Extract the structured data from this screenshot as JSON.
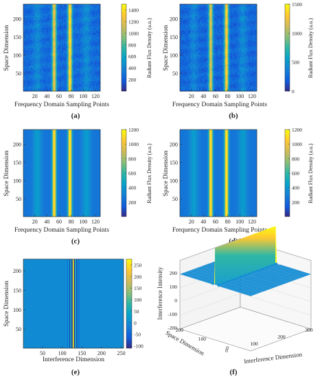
{
  "chart_data": [
    {
      "id": "a",
      "type": "heatmap",
      "caption": "(a)",
      "xlabel": "Frequency Domain Sampling Points",
      "ylabel": "Space Dimension",
      "xlim": [
        1,
        128
      ],
      "ylim": [
        1,
        240
      ],
      "xticks": [
        20,
        40,
        60,
        80,
        100,
        120
      ],
      "yticks": [
        50,
        100,
        150,
        200
      ],
      "colorbar_label": "Radiant Flux Density (a.u.)",
      "clim": [
        0,
        1500
      ],
      "colorbar_ticks": [
        200,
        400,
        600,
        800,
        1000,
        1200,
        1400
      ],
      "peaks": [
        {
          "x": 52,
          "width": 3.5,
          "value": 1250
        },
        {
          "x": 78,
          "width": 3.5,
          "value": 1400
        }
      ],
      "side_bands": [
        {
          "x": 24,
          "value": 420
        },
        {
          "x": 105,
          "value": 430
        }
      ],
      "baseline": 250,
      "noise": "striped"
    },
    {
      "id": "b",
      "type": "heatmap",
      "caption": "(b)",
      "xlabel": "Frequency Domain Sampling Points",
      "ylabel": "Space Dimension",
      "xlim": [
        1,
        128
      ],
      "ylim": [
        1,
        240
      ],
      "xticks": [
        20,
        40,
        60,
        80,
        100,
        120
      ],
      "yticks": [
        50,
        100,
        150,
        200
      ],
      "colorbar_label": "Radiant Flux Density (a.u.)",
      "clim": [
        0,
        1500
      ],
      "colorbar_ticks": [
        0,
        500,
        1000,
        1500
      ],
      "peaks": [
        {
          "x": 52,
          "width": 3.5,
          "value": 1200
        },
        {
          "x": 78,
          "width": 3.5,
          "value": 1350
        }
      ],
      "side_bands": [
        {
          "x": 24,
          "value": 400
        },
        {
          "x": 105,
          "value": 420
        }
      ],
      "baseline": 230,
      "noise": "striped"
    },
    {
      "id": "c",
      "type": "heatmap",
      "caption": "(c)",
      "xlabel": "Frequency Domain Sampling Points",
      "ylabel": "Space Dimension",
      "xlim": [
        1,
        128
      ],
      "ylim": [
        1,
        240
      ],
      "xticks": [
        20,
        40,
        60,
        80,
        100,
        120
      ],
      "yticks": [
        50,
        100,
        150,
        200
      ],
      "colorbar_label": "Radiant Flux Density (a.u.)",
      "clim": [
        0,
        1200
      ],
      "colorbar_ticks": [
        200,
        400,
        600,
        800,
        1000,
        1200
      ],
      "peaks": [
        {
          "x": 52,
          "width": 3.2,
          "value": 1150
        },
        {
          "x": 78,
          "width": 3.2,
          "value": 1180
        }
      ],
      "side_bands": [
        {
          "x": 24,
          "value": 420
        },
        {
          "x": 105,
          "value": 420
        }
      ],
      "baseline": 250,
      "noise": "smooth"
    },
    {
      "id": "d",
      "type": "heatmap",
      "caption": "(d)",
      "xlabel": "Frequency Domain Sampling Points",
      "ylabel": "Space Dimension",
      "xlim": [
        1,
        128
      ],
      "ylim": [
        1,
        240
      ],
      "xticks": [
        20,
        40,
        60,
        80,
        100,
        120
      ],
      "yticks": [
        50,
        100,
        150,
        200
      ],
      "colorbar_label": "Radiant Flux Density (a.u.)",
      "clim": [
        0,
        1200
      ],
      "colorbar_ticks": [
        200,
        400,
        600,
        800,
        1000,
        1200
      ],
      "peaks": [
        {
          "x": 52,
          "width": 3.2,
          "value": 1150
        },
        {
          "x": 78,
          "width": 3.2,
          "value": 1180
        }
      ],
      "side_bands": [
        {
          "x": 24,
          "value": 420
        },
        {
          "x": 105,
          "value": 420
        }
      ],
      "baseline": 250,
      "noise": "smooth"
    },
    {
      "id": "e",
      "type": "heatmap",
      "caption": "(e)",
      "xlabel": "Interference Dimension",
      "ylabel": "Space Dimension",
      "xlim": [
        1,
        256
      ],
      "ylim": [
        1,
        230
      ],
      "xticks": [
        50,
        100,
        150,
        200,
        250
      ],
      "yticks": [
        50,
        100,
        150,
        200
      ],
      "clim": [
        -110,
        275
      ],
      "colorbar_ticks": [
        -100,
        -50,
        0,
        50,
        100,
        150,
        200,
        250
      ],
      "background_value": 0,
      "fringe_center": 128,
      "fringes": [
        {
          "offset": -14,
          "value": -40
        },
        {
          "offset": -12,
          "value": 30
        },
        {
          "offset": -9,
          "value": -80
        },
        {
          "offset": -6,
          "value": 60
        },
        {
          "offset": -3,
          "value": -100
        },
        {
          "offset": 0,
          "value": 270
        },
        {
          "offset": 3,
          "value": -100
        },
        {
          "offset": 6,
          "value": 60
        },
        {
          "offset": 9,
          "value": -80
        },
        {
          "offset": 12,
          "value": 30
        },
        {
          "offset": 14,
          "value": -40
        }
      ]
    },
    {
      "id": "f",
      "type": "surface3d",
      "caption": "(f)",
      "xlabel": "Interference Dimension",
      "ylabel": "Space Dimension",
      "zlabel": "Interference Intensity",
      "xticks": [
        0,
        100,
        200,
        300
      ],
      "yticks": [
        0,
        100,
        200
      ],
      "zticks": [
        -200,
        -100,
        0,
        100,
        200
      ],
      "zlim": [
        -200,
        300
      ],
      "peak_value": 270,
      "peak_x": 128
    }
  ]
}
